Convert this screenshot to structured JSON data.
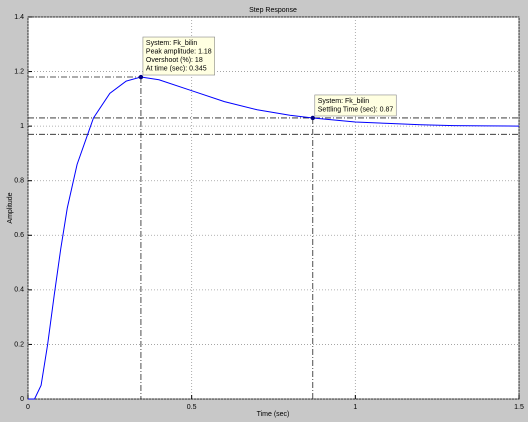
{
  "chart_data": {
    "type": "line",
    "title": "Step Response",
    "xlabel": "Time (sec)",
    "ylabel": "Amplitude",
    "x": [
      0,
      0.02,
      0.04,
      0.06,
      0.08,
      0.1,
      0.12,
      0.15,
      0.2,
      0.25,
      0.3,
      0.345,
      0.4,
      0.5,
      0.6,
      0.7,
      0.8,
      0.87,
      1.0,
      1.1,
      1.2,
      1.3,
      1.4,
      1.5
    ],
    "series": [
      {
        "color": "#0000ff",
        "values": [
          0,
          0,
          0.05,
          0.2,
          0.38,
          0.55,
          0.7,
          0.86,
          1.03,
          1.12,
          1.165,
          1.18,
          1.17,
          1.13,
          1.09,
          1.06,
          1.04,
          1.03,
          1.015,
          1.01,
          1.005,
          1.002,
          1.001,
          1.0
        ]
      }
    ],
    "xlim": [
      0,
      1.5
    ],
    "xticks": [
      0,
      0.5,
      1,
      1.5
    ],
    "ylim": [
      0,
      1.4
    ],
    "yticks": [
      0,
      0.2,
      0.4,
      0.6,
      0.8,
      1,
      1.2,
      1.4
    ],
    "grid": true,
    "settling_band": [
      0.97,
      1.03
    ],
    "annotations": [
      {
        "x": 0.345,
        "y": 1.18,
        "lines": [
          "System: Fk_bilin",
          "Peak amplitude: 1.18",
          "Overshoot (%): 18",
          "At time (sec): 0.345"
        ]
      },
      {
        "x": 0.87,
        "y": 1.03,
        "lines": [
          "System: Fk_bilin",
          "Settling Time (sec): 0.87"
        ]
      }
    ]
  }
}
